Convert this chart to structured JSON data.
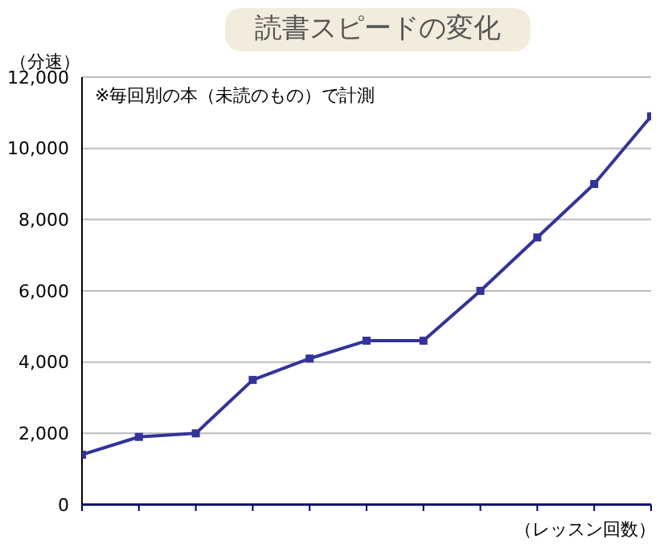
{
  "chart_data": {
    "type": "line",
    "title": "読書スピードの変化",
    "ylabel": "（分速）",
    "xlabel": "（レッスン回数）",
    "annotations": [
      "※毎回別の本（未読のもの）で計測"
    ],
    "categories": [
      null,
      null,
      null,
      null,
      null,
      null,
      null,
      null,
      null,
      null,
      null
    ],
    "series": [
      {
        "color": "#333399",
        "values": [
          1400,
          1900,
          2000,
          3500,
          4100,
          4600,
          4600,
          6000,
          7500,
          9000,
          10900
        ]
      }
    ],
    "ylim": [
      0,
      12000
    ],
    "yticks": [
      {
        "value": 0,
        "label": "0"
      },
      {
        "value": 2000,
        "label": "2,000"
      },
      {
        "value": 4000,
        "label": "4,000"
      },
      {
        "value": 6000,
        "label": "6,000"
      },
      {
        "value": 8000,
        "label": "8,000"
      },
      {
        "value": 10000,
        "label": "10,000"
      },
      {
        "value": 12000,
        "label": "12,000"
      }
    ],
    "grid": "y",
    "marker": "square",
    "line_style": "solid",
    "legend": false
  }
}
